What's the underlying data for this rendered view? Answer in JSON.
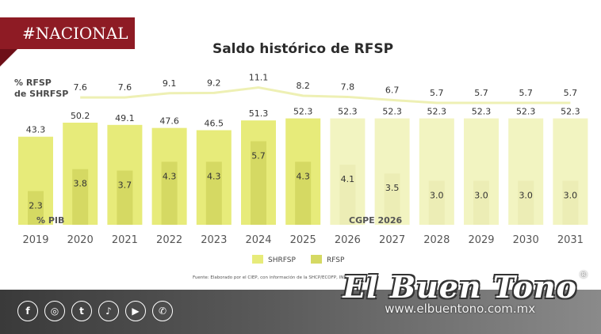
{
  "tag": "#NACIONAL",
  "chart_data": {
    "type": "bar",
    "title": "Saldo histórico de RFSP",
    "categories": [
      "2019",
      "2020",
      "2021",
      "2022",
      "2023",
      "2024",
      "2025",
      "2026",
      "2027",
      "2028",
      "2029",
      "2030",
      "2031"
    ],
    "series": [
      {
        "name": "SHRFSP",
        "values": [
          43.3,
          50.2,
          49.1,
          47.6,
          46.5,
          51.3,
          52.3,
          52.3,
          52.3,
          52.3,
          52.3,
          52.3,
          52.3
        ],
        "color": "#e7eb7a",
        "color_projection": "#f2f4c1"
      },
      {
        "name": "RFSP",
        "values": [
          2.3,
          3.8,
          3.7,
          4.3,
          4.3,
          5.7,
          4.3,
          4.1,
          3.5,
          3.0,
          3.0,
          3.0,
          3.0
        ],
        "color": "#d5d963",
        "color_projection": "#ecedb5"
      }
    ],
    "ratio": {
      "label_line1": "% RFSP",
      "label_line2": "de SHRFSP",
      "values": [
        null,
        7.6,
        7.6,
        9.1,
        9.2,
        11.1,
        8.2,
        7.8,
        6.7,
        5.7,
        5.7,
        5.7,
        5.7
      ],
      "color": "#eef0b4"
    },
    "unit_label": "% PIB",
    "projection_label": "CGPE 2026",
    "projection_start": "2026",
    "ylim": [
      0,
      60
    ],
    "grid": false,
    "legend_position": "bottom-center",
    "source": "Fuente: Elaborado por el CIEP, con información de la SHCP/ECOFP, INEGI/BIE..."
  },
  "social": [
    "f",
    "◎",
    "t",
    "♪",
    "▶",
    "✆"
  ],
  "brand": {
    "name": "El Buen Tono",
    "reg": "®",
    "url": "www.elbuentono.com.mx"
  }
}
